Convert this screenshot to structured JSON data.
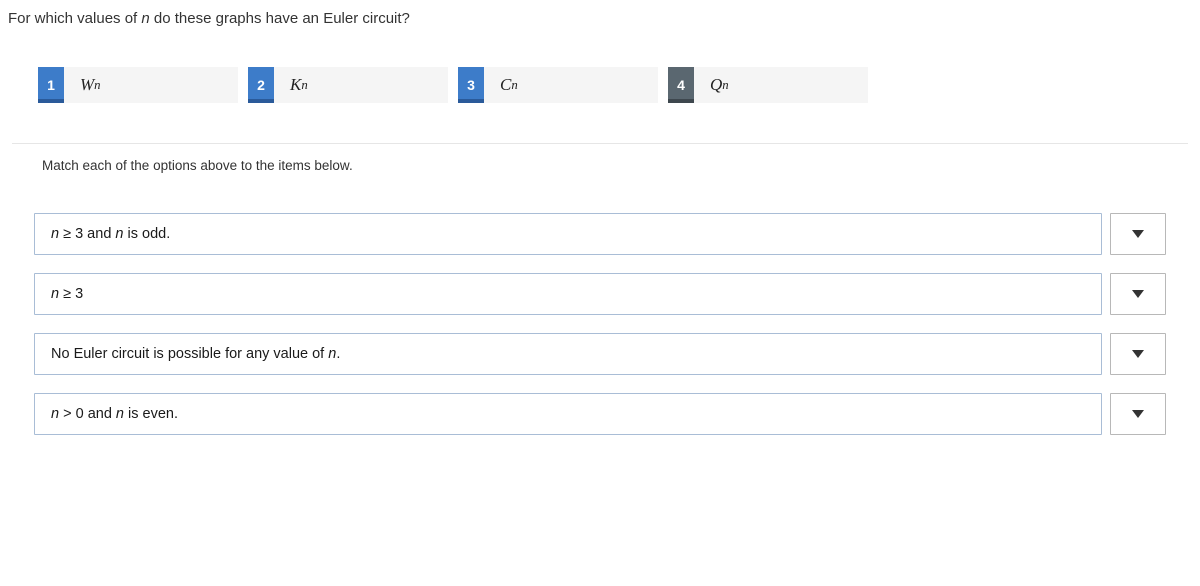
{
  "question_prefix": "For which values of ",
  "question_var": "n",
  "question_suffix": " do these graphs have an Euler circuit?",
  "options": [
    {
      "num": "1",
      "letter": "W",
      "sub": "n",
      "active": true
    },
    {
      "num": "2",
      "letter": "K",
      "sub": "n",
      "active": true
    },
    {
      "num": "3",
      "letter": "C",
      "sub": "n",
      "active": true
    },
    {
      "num": "4",
      "letter": "Q",
      "sub": "n",
      "active": false
    }
  ],
  "instruction": "Match each of the options above to the items below.",
  "items": [
    {
      "parts": [
        {
          "t": "var",
          "v": "n"
        },
        {
          "t": "txt",
          "v": " ≥ 3 and "
        },
        {
          "t": "var",
          "v": "n"
        },
        {
          "t": "txt",
          "v": " is odd."
        }
      ]
    },
    {
      "parts": [
        {
          "t": "var",
          "v": "n"
        },
        {
          "t": "txt",
          "v": " ≥ 3"
        }
      ]
    },
    {
      "parts": [
        {
          "t": "txt",
          "v": "No Euler circuit is possible for any value of "
        },
        {
          "t": "var",
          "v": "n"
        },
        {
          "t": "txt",
          "v": "."
        }
      ]
    },
    {
      "parts": [
        {
          "t": "var",
          "v": "n"
        },
        {
          "t": "txt",
          "v": " > 0 and "
        },
        {
          "t": "var",
          "v": "n"
        },
        {
          "t": "txt",
          "v": " is even."
        }
      ]
    }
  ],
  "colors": {
    "option_active_bg": "#3d7cc9",
    "option_inactive_bg": "#5a6770",
    "item_border": "#a9bdd6",
    "dropdown_border": "#b8b8b8",
    "dropdown_arrow": "#333333"
  }
}
